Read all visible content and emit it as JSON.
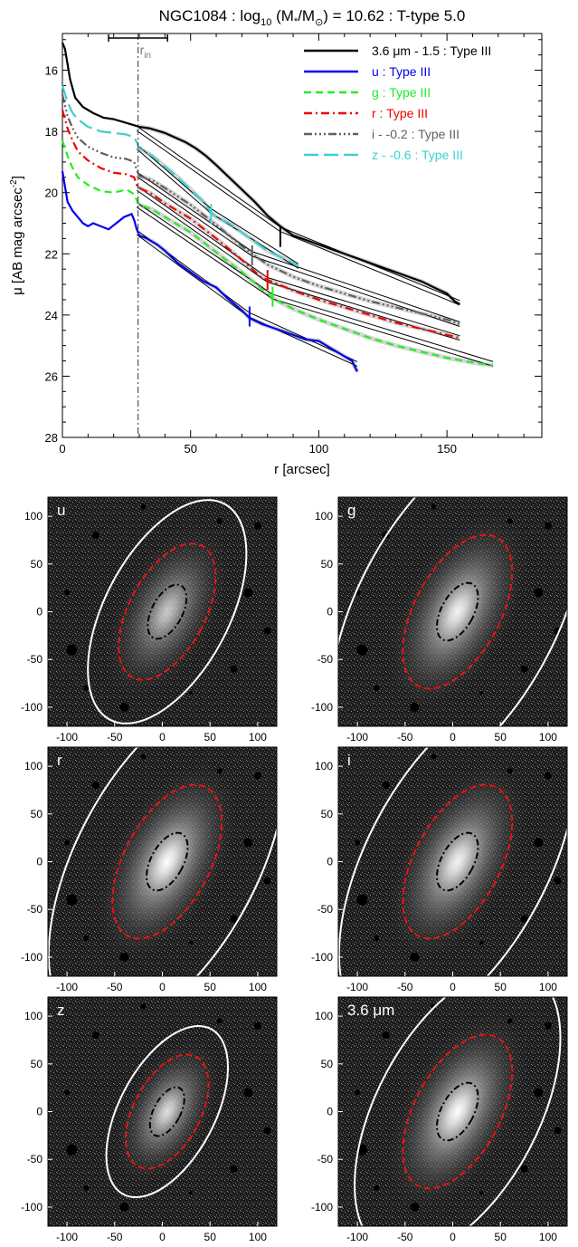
{
  "chart_data": [
    {
      "type": "line",
      "title": "NGC1084 : log10 (M*/M⊙) = 10.62 : T-type 5.0",
      "title_parts": {
        "a": "NGC1084 : log",
        "sub": "10",
        "b": " (M",
        "star": "*",
        "c": "/M",
        "sun": "⊙",
        "d": ") = 10.62 : T-type 5.0"
      },
      "xlabel": "r [arcsec]",
      "ylabel": "μ [AB mag arcsec-2]",
      "ylabel_parts": {
        "a": "μ [AB mag arcsec",
        "sup": "-2",
        "b": "]"
      },
      "xlim": [
        0,
        187
      ],
      "ylim": [
        28,
        14.8
      ],
      "y_inverted": true,
      "xticks": [
        0,
        50,
        100,
        150
      ],
      "yticks": [
        16,
        18,
        20,
        22,
        24,
        26,
        28
      ],
      "legend_position": "top-right",
      "r_in": {
        "label": "r",
        "sub": "in",
        "x": 29.5,
        "err": [
          18,
          41
        ]
      },
      "series": [
        {
          "name": "3.6 μm - 1.5 : Type III",
          "color": "#000000",
          "dash": "solid",
          "x": [
            0,
            1,
            2,
            3,
            5,
            8,
            12,
            16,
            20,
            24,
            28,
            30,
            34,
            40,
            44,
            48,
            52,
            56,
            60,
            65,
            70,
            75,
            80,
            85,
            90,
            95,
            100,
            105,
            110,
            115,
            120,
            125,
            130,
            135,
            140,
            145,
            150,
            153,
            155
          ],
          "y": [
            15.1,
            15.3,
            15.8,
            16.3,
            16.9,
            17.2,
            17.4,
            17.55,
            17.6,
            17.7,
            17.8,
            17.85,
            17.9,
            18.05,
            18.2,
            18.35,
            18.55,
            18.8,
            19.1,
            19.5,
            19.9,
            20.3,
            20.75,
            21.1,
            21.4,
            21.55,
            21.7,
            21.85,
            22.0,
            22.15,
            22.3,
            22.45,
            22.6,
            22.75,
            22.9,
            23.1,
            23.3,
            23.55,
            23.65
          ],
          "fit_x": [
            29,
            85,
            155
          ],
          "fit_y": [
            17.9,
            21.2,
            23.6
          ],
          "break": [
            85,
            21.45
          ]
        },
        {
          "name": "u : Type III",
          "color": "#0000ee",
          "dash": "solid",
          "x": [
            0,
            1,
            2,
            4,
            6,
            8,
            10,
            12,
            15,
            18,
            21,
            24,
            27,
            28,
            29,
            30,
            33,
            37,
            40,
            45,
            50,
            55,
            60,
            65,
            70,
            73,
            78,
            85,
            90,
            95,
            100,
            105,
            110,
            113,
            115
          ],
          "y": [
            19.3,
            19.8,
            20.3,
            20.6,
            20.8,
            21.0,
            21.1,
            21.0,
            21.1,
            21.2,
            21.0,
            20.8,
            20.7,
            20.9,
            21.2,
            21.4,
            21.5,
            21.7,
            21.9,
            22.3,
            22.6,
            22.9,
            23.1,
            23.5,
            23.85,
            24.1,
            24.3,
            24.5,
            24.65,
            24.8,
            24.85,
            25.1,
            25.35,
            25.5,
            25.85
          ],
          "fit_x": [
            29,
            73,
            115
          ],
          "fit_y": [
            21.3,
            24.0,
            25.6
          ],
          "break": [
            73,
            24.05
          ]
        },
        {
          "name": "g : Type III",
          "color": "#22ee22",
          "dash": "dash",
          "x": [
            0,
            2,
            4,
            6,
            10,
            15,
            20,
            25,
            28,
            29,
            30,
            35,
            40,
            50,
            60,
            70,
            80,
            82,
            90,
            100,
            110,
            120,
            130,
            140,
            150,
            160,
            168
          ],
          "y": [
            18.3,
            18.8,
            19.2,
            19.5,
            19.75,
            19.95,
            20.0,
            19.9,
            20.05,
            20.25,
            20.4,
            20.55,
            20.8,
            21.3,
            21.95,
            22.6,
            23.3,
            23.45,
            23.8,
            24.15,
            24.45,
            24.75,
            25.0,
            25.2,
            25.4,
            25.55,
            25.65
          ],
          "fit_x": [
            29,
            82,
            168
          ],
          "fit_y": [
            20.4,
            23.4,
            25.6
          ],
          "break": [
            82,
            23.4
          ]
        },
        {
          "name": "r : Type III",
          "color": "#ee0000",
          "dash": "dashdot",
          "x": [
            0,
            2,
            4,
            6,
            10,
            15,
            20,
            25,
            28,
            29,
            30,
            35,
            40,
            50,
            60,
            70,
            78,
            80,
            90,
            100,
            110,
            120,
            130,
            140,
            150,
            155
          ],
          "y": [
            17.3,
            17.9,
            18.3,
            18.65,
            18.95,
            19.2,
            19.35,
            19.4,
            19.5,
            19.75,
            19.85,
            20.05,
            20.35,
            20.85,
            21.5,
            22.2,
            22.8,
            22.85,
            23.2,
            23.5,
            23.75,
            24.0,
            24.25,
            24.45,
            24.65,
            24.75
          ],
          "fit_x": [
            29,
            80,
            155
          ],
          "fit_y": [
            19.85,
            22.85,
            24.75
          ],
          "break": [
            80,
            22.85
          ]
        },
        {
          "name": "i - -0.2 : Type III",
          "color": "#606060",
          "dash": "dashdotdotdot",
          "x": [
            0,
            2,
            4,
            6,
            10,
            15,
            20,
            25,
            28,
            29,
            30,
            35,
            40,
            50,
            60,
            70,
            74,
            80,
            90,
            100,
            110,
            120,
            130,
            140,
            150,
            155
          ],
          "y": [
            16.8,
            17.5,
            17.9,
            18.2,
            18.5,
            18.7,
            18.85,
            18.9,
            19.0,
            19.25,
            19.45,
            19.6,
            19.85,
            20.4,
            21.05,
            21.75,
            22.0,
            22.35,
            22.75,
            23.05,
            23.3,
            23.55,
            23.75,
            23.95,
            24.15,
            24.3
          ],
          "fit_x": [
            29,
            74,
            155
          ],
          "fit_y": [
            19.4,
            22.0,
            24.3
          ],
          "break": [
            74,
            22.05
          ]
        },
        {
          "name": "z - -0.6 : Type III",
          "color": "#3fcfcf",
          "dash": "longdash",
          "x": [
            0,
            2,
            4,
            6,
            10,
            15,
            20,
            25,
            28,
            29,
            30,
            35,
            40,
            45,
            50,
            55,
            58,
            60,
            65,
            70,
            75,
            80,
            85,
            90,
            92
          ],
          "y": [
            16.5,
            17.05,
            17.4,
            17.6,
            17.85,
            18.0,
            18.05,
            18.1,
            18.2,
            18.35,
            18.55,
            18.8,
            19.15,
            19.5,
            19.9,
            20.3,
            20.65,
            20.8,
            21.0,
            21.3,
            21.6,
            21.9,
            22.1,
            22.3,
            22.4
          ],
          "fit_x": [
            29,
            58,
            92
          ],
          "fit_y": [
            18.5,
            20.6,
            22.4
          ],
          "break": [
            58,
            20.7
          ]
        }
      ]
    },
    {
      "type": "image",
      "band_label": "u",
      "xlim": [
        -120,
        120
      ],
      "ylim": [
        -120,
        120
      ],
      "xticks": [
        -100,
        -50,
        0,
        50,
        100
      ],
      "yticks": [
        100,
        50,
        0,
        -50,
        -100
      ],
      "outer_semi_axes": [
        65,
        128
      ],
      "mid_semi_axes": [
        40,
        78
      ],
      "inner_semi_axes": [
        16,
        31
      ],
      "pa_deg": -28,
      "center": [
        5,
        0
      ],
      "glow": 0.75
    },
    {
      "type": "image",
      "band_label": "g",
      "xlim": [
        -120,
        120
      ],
      "ylim": [
        -120,
        120
      ],
      "xticks": [
        -100,
        -50,
        0,
        50,
        100
      ],
      "yticks": [
        100,
        50,
        0,
        -50,
        -100
      ],
      "outer_semi_axes": [
        105,
        205
      ],
      "mid_semi_axes": [
        45,
        88
      ],
      "inner_semi_axes": [
        17,
        33
      ],
      "pa_deg": -28,
      "center": [
        5,
        0
      ],
      "glow": 0.95
    },
    {
      "type": "image",
      "band_label": "r",
      "xlim": [
        -120,
        120
      ],
      "ylim": [
        -120,
        120
      ],
      "xticks": [
        -100,
        -50,
        0,
        50,
        100
      ],
      "yticks": [
        100,
        50,
        0,
        -50,
        -100
      ],
      "outer_semi_axes": [
        95,
        195
      ],
      "mid_semi_axes": [
        45,
        88
      ],
      "inner_semi_axes": [
        17,
        33
      ],
      "pa_deg": -28,
      "center": [
        5,
        0
      ],
      "glow": 1.0
    },
    {
      "type": "image",
      "band_label": "i",
      "xlim": [
        -120,
        120
      ],
      "ylim": [
        -120,
        120
      ],
      "xticks": [
        -100,
        -50,
        0,
        50,
        100
      ],
      "yticks": [
        100,
        50,
        0,
        -50,
        -100
      ],
      "outer_semi_axes": [
        95,
        195
      ],
      "mid_semi_axes": [
        45,
        88
      ],
      "inner_semi_axes": [
        17,
        33
      ],
      "pa_deg": -28,
      "center": [
        5,
        0
      ],
      "glow": 0.95
    },
    {
      "type": "image",
      "band_label": "z",
      "xlim": [
        -120,
        120
      ],
      "ylim": [
        -120,
        120
      ],
      "xticks": [
        -100,
        -50,
        0,
        50,
        100
      ],
      "yticks": [
        100,
        50,
        0,
        -50,
        -100
      ],
      "outer_semi_axes": [
        50,
        98
      ],
      "mid_semi_axes": [
        35,
        65
      ],
      "inner_semi_axes": [
        14,
        28
      ],
      "pa_deg": -28,
      "center": [
        5,
        0
      ],
      "glow": 0.85
    },
    {
      "type": "image",
      "band_label": "3.6 μm",
      "xlim": [
        -120,
        120
      ],
      "ylim": [
        -120,
        120
      ],
      "xticks": [
        -100,
        -50,
        0,
        50,
        100
      ],
      "yticks": [
        100,
        50,
        0,
        -50,
        -100
      ],
      "outer_semi_axes": [
        85,
        165
      ],
      "mid_semi_axes": [
        45,
        88
      ],
      "inner_semi_axes": [
        17,
        33
      ],
      "pa_deg": -28,
      "center": [
        5,
        0
      ],
      "glow": 1.0
    }
  ],
  "colors": {
    "outer_ellipse": "#ffffff",
    "mid_ellipse": "#ee1111",
    "inner_ellipse": "#000000",
    "rin_line": "#555555",
    "fit_line": "#000000",
    "band_error": "#bbbbbb"
  }
}
